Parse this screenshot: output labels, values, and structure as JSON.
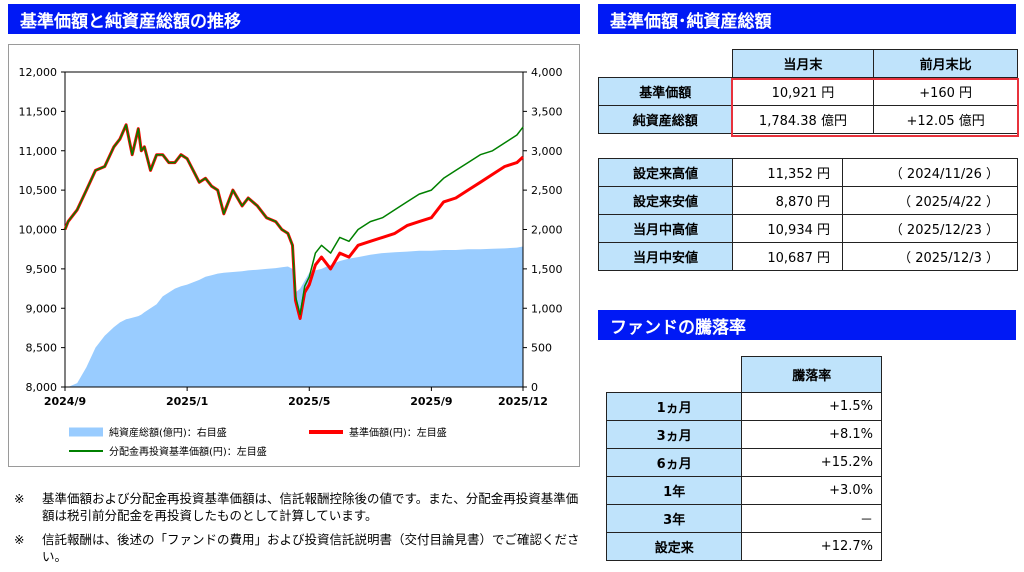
{
  "left_title": "基準価額と純資産総額の推移",
  "right_title": "基準価額･純資産総額",
  "perf_title": "ファンドの騰落率",
  "summary": {
    "col1": "当月末",
    "col2": "前月末比",
    "rows": [
      {
        "label": "基準価額",
        "v1": "10,921 円",
        "v2": "+160 円"
      },
      {
        "label": "純資産総額",
        "v1": "1,784.38 億円",
        "v2": "+12.05 億円"
      }
    ]
  },
  "extremes": [
    {
      "label": "設定来高値",
      "value": "11,352 円",
      "date": "（ 2024/11/26 ）"
    },
    {
      "label": "設定来安値",
      "value": "8,870 円",
      "date": "（ 2025/4/22 ）"
    },
    {
      "label": "当月中高値",
      "value": "10,934 円",
      "date": "（ 2025/12/23 ）"
    },
    {
      "label": "当月中安値",
      "value": "10,687 円",
      "date": "（ 2025/12/3 ）"
    }
  ],
  "performance": {
    "header": "騰落率",
    "rows": [
      {
        "label": "1ヵ月",
        "value": "+1.5%"
      },
      {
        "label": "3ヵ月",
        "value": "+8.1%"
      },
      {
        "label": "6ヵ月",
        "value": "+15.2%"
      },
      {
        "label": "1年",
        "value": "+3.0%"
      },
      {
        "label": "3年",
        "value": "－"
      },
      {
        "label": "設定来",
        "value": "+12.7%"
      }
    ]
  },
  "notes": [
    {
      "mark": "※",
      "text": "基準価額および分配金再投資基準価額は、信託報酬控除後の値です。また、分配金再投資基準価額は税引前分配金を再投資したものとして計算しています。"
    },
    {
      "mark": "※",
      "text": "信託報酬は、後述の「ファンドの費用」および投資信託説明書（交付目論見書）でご確認ください。"
    }
  ],
  "chart_data": {
    "type": "line",
    "x_tick_labels": [
      "2024/9",
      "2025/1",
      "2025/5",
      "2025/9",
      "2025/12"
    ],
    "x_tick_positions": [
      0,
      4,
      8,
      12,
      15
    ],
    "y_left": {
      "min": 8000,
      "max": 12000,
      "ticks": [
        8000,
        8500,
        9000,
        9500,
        10000,
        10500,
        11000,
        11500,
        12000
      ]
    },
    "y_right": {
      "min": 0,
      "max": 4000,
      "ticks": [
        0,
        500,
        1000,
        1500,
        2000,
        2500,
        3000,
        3500,
        4000
      ]
    },
    "colors": {
      "nav_area": "#99ccff",
      "price": "#ff0000",
      "reinvest": "#008000"
    },
    "legend": {
      "nav_area": "純資産総額(億円)：右目盛",
      "price": "基準価額(円)：左目盛",
      "reinvest": "分配金再投資基準価額(円)：左目盛"
    },
    "x": [
      0,
      0.1,
      0.4,
      0.7,
      1.0,
      1.3,
      1.6,
      1.8,
      2.0,
      2.2,
      2.4,
      2.5,
      2.6,
      2.8,
      3.0,
      3.2,
      3.4,
      3.6,
      3.8,
      4.0,
      4.2,
      4.4,
      4.6,
      4.8,
      5.0,
      5.2,
      5.5,
      5.8,
      6.0,
      6.3,
      6.6,
      6.9,
      7.1,
      7.3,
      7.45,
      7.55,
      7.7,
      7.85,
      8.0,
      8.2,
      8.4,
      8.7,
      9.0,
      9.3,
      9.6,
      10.0,
      10.4,
      10.8,
      11.2,
      11.6,
      12.0,
      12.4,
      12.8,
      13.2,
      13.6,
      14.0,
      14.4,
      14.8,
      15.0
    ],
    "price": [
      10000,
      10100,
      10250,
      10500,
      10750,
      10800,
      11050,
      11150,
      11330,
      10950,
      11280,
      11000,
      11050,
      10750,
      10950,
      10950,
      10850,
      10850,
      10950,
      10900,
      10750,
      10600,
      10650,
      10550,
      10500,
      10200,
      10500,
      10300,
      10400,
      10300,
      10150,
      10100,
      10000,
      9950,
      9800,
      9100,
      8870,
      9200,
      9300,
      9550,
      9650,
      9500,
      9700,
      9650,
      9800,
      9850,
      9900,
      9950,
      10050,
      10100,
      10150,
      10350,
      10400,
      10500,
      10600,
      10700,
      10800,
      10850,
      10921
    ],
    "reinvest": [
      10000,
      10100,
      10250,
      10500,
      10750,
      10800,
      11050,
      11150,
      11330,
      10950,
      11280,
      11000,
      11050,
      10750,
      10950,
      10950,
      10850,
      10850,
      10950,
      10900,
      10750,
      10600,
      10650,
      10550,
      10500,
      10200,
      10500,
      10300,
      10400,
      10300,
      10150,
      10100,
      10000,
      9950,
      9800,
      9150,
      8920,
      9280,
      9400,
      9700,
      9800,
      9700,
      9900,
      9850,
      10000,
      10100,
      10150,
      10250,
      10350,
      10450,
      10500,
      10650,
      10750,
      10850,
      10950,
      11000,
      11100,
      11200,
      11300
    ],
    "nav": [
      0,
      0,
      50,
      250,
      500,
      650,
      760,
      820,
      860,
      880,
      900,
      920,
      950,
      1000,
      1050,
      1150,
      1200,
      1250,
      1280,
      1300,
      1330,
      1360,
      1400,
      1420,
      1440,
      1450,
      1460,
      1470,
      1480,
      1490,
      1500,
      1510,
      1520,
      1530,
      1500,
      1200,
      1250,
      1350,
      1450,
      1480,
      1500,
      1550,
      1600,
      1630,
      1650,
      1680,
      1700,
      1710,
      1720,
      1730,
      1730,
      1740,
      1740,
      1750,
      1750,
      1755,
      1760,
      1770,
      1784
    ]
  }
}
